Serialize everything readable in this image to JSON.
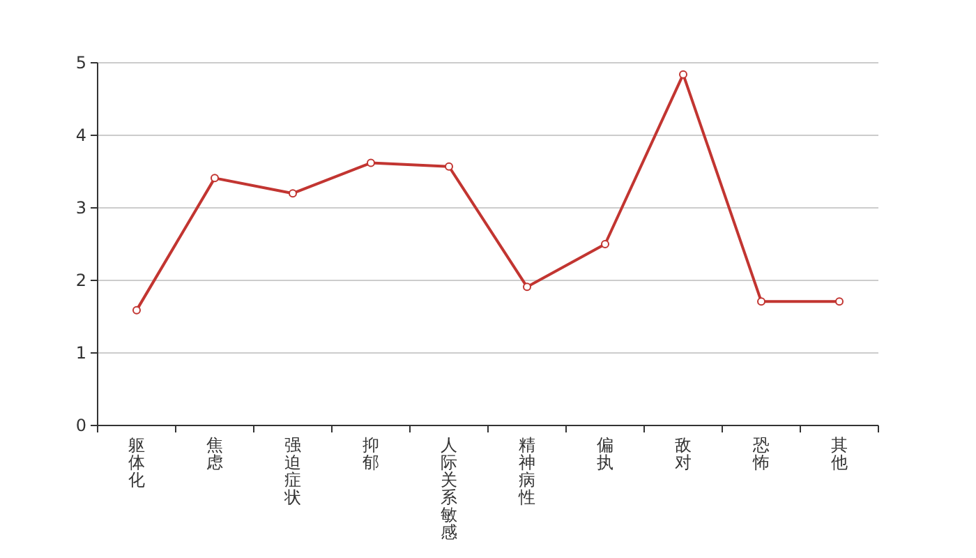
{
  "chart_data": {
    "type": "line",
    "categories": [
      "躯体化",
      "焦虑",
      "强迫症状",
      "抑郁",
      "人际关系敏感",
      "精神病性",
      "偏执",
      "敌对",
      "恐怖",
      "其他"
    ],
    "series": [
      {
        "color": "#c23531",
        "values": [
          1.59,
          3.41,
          3.2,
          3.62,
          3.57,
          1.91,
          2.5,
          4.84,
          1.71,
          1.71
        ]
      }
    ],
    "ylim": [
      0,
      5
    ],
    "yticks": [
      0,
      1,
      2,
      3,
      4,
      5
    ],
    "grid": "y",
    "marker": "circle",
    "line_style": "solid"
  }
}
